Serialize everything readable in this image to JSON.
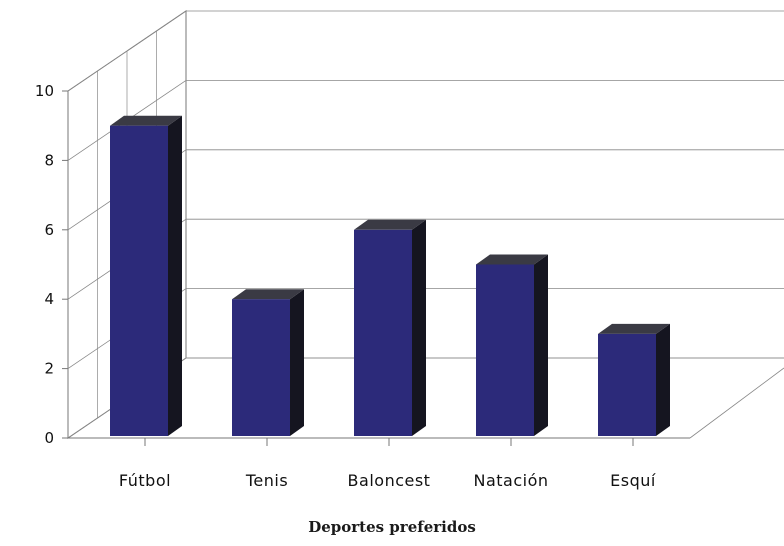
{
  "chart_data": {
    "type": "bar",
    "title": "Deportes preferidos",
    "categories": [
      "Fútbol",
      "Tenis",
      "Baloncest",
      "Natación",
      "Esquí"
    ],
    "series": [
      {
        "values": [
          9,
          4,
          6,
          5,
          3
        ]
      }
    ],
    "ylim": [
      0,
      10
    ],
    "yticks": [
      "0",
      "2",
      "4",
      "6",
      "8",
      "10"
    ],
    "xlabel": "",
    "ylabel": "",
    "grid": true,
    "style": "3d",
    "colors": {
      "bar_front": "#2c2a7a",
      "bar_top": "#3a3a44",
      "bar_side": "#151520",
      "grid": "#888888",
      "axis": "#777777"
    }
  }
}
